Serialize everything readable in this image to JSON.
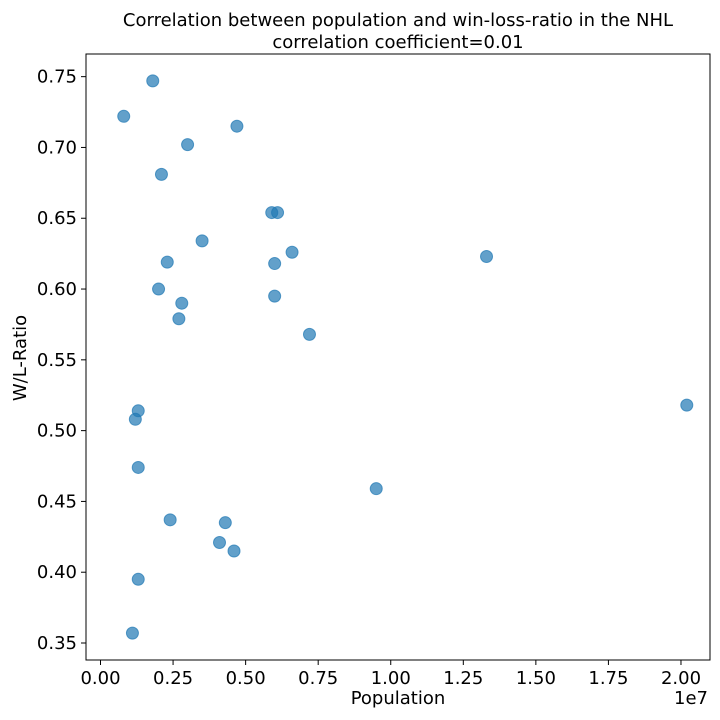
{
  "chart_data": {
    "type": "scatter",
    "title": "Correlation between population and win-loss-ratio in the NHL",
    "subtitle": "correlation coefficient=0.01",
    "xlabel": "Population",
    "ylabel": "W/L-Ratio",
    "x_offset_label": "1e7",
    "xlim": [
      -0.05,
      2.1
    ],
    "ylim": [
      0.338,
      0.766
    ],
    "xticks": [
      0.0,
      0.25,
      0.5,
      0.75,
      1.0,
      1.25,
      1.5,
      1.75,
      2.0
    ],
    "xtick_labels": [
      "0.00",
      "0.25",
      "0.50",
      "0.75",
      "1.00",
      "1.25",
      "1.50",
      "1.75",
      "2.00"
    ],
    "yticks": [
      0.35,
      0.4,
      0.45,
      0.5,
      0.55,
      0.6,
      0.65,
      0.7,
      0.75
    ],
    "ytick_labels": [
      "0.35",
      "0.40",
      "0.45",
      "0.50",
      "0.55",
      "0.60",
      "0.65",
      "0.70",
      "0.75"
    ],
    "grid": false,
    "color": "#1f77b4",
    "points": [
      {
        "x": 0.08,
        "y": 0.722
      },
      {
        "x": 0.18,
        "y": 0.747
      },
      {
        "x": 0.21,
        "y": 0.681
      },
      {
        "x": 0.3,
        "y": 0.702
      },
      {
        "x": 0.47,
        "y": 0.715
      },
      {
        "x": 0.35,
        "y": 0.634
      },
      {
        "x": 0.23,
        "y": 0.619
      },
      {
        "x": 0.2,
        "y": 0.6
      },
      {
        "x": 0.28,
        "y": 0.59
      },
      {
        "x": 0.27,
        "y": 0.579
      },
      {
        "x": 0.59,
        "y": 0.654
      },
      {
        "x": 0.61,
        "y": 0.654
      },
      {
        "x": 0.66,
        "y": 0.626
      },
      {
        "x": 0.6,
        "y": 0.618
      },
      {
        "x": 0.6,
        "y": 0.595
      },
      {
        "x": 0.72,
        "y": 0.568
      },
      {
        "x": 1.33,
        "y": 0.623
      },
      {
        "x": 0.13,
        "y": 0.514
      },
      {
        "x": 0.12,
        "y": 0.508
      },
      {
        "x": 0.13,
        "y": 0.474
      },
      {
        "x": 0.24,
        "y": 0.437
      },
      {
        "x": 0.43,
        "y": 0.435
      },
      {
        "x": 0.41,
        "y": 0.421
      },
      {
        "x": 0.46,
        "y": 0.415
      },
      {
        "x": 0.95,
        "y": 0.459
      },
      {
        "x": 2.02,
        "y": 0.518
      },
      {
        "x": 0.13,
        "y": 0.395
      },
      {
        "x": 0.11,
        "y": 0.357
      }
    ]
  }
}
